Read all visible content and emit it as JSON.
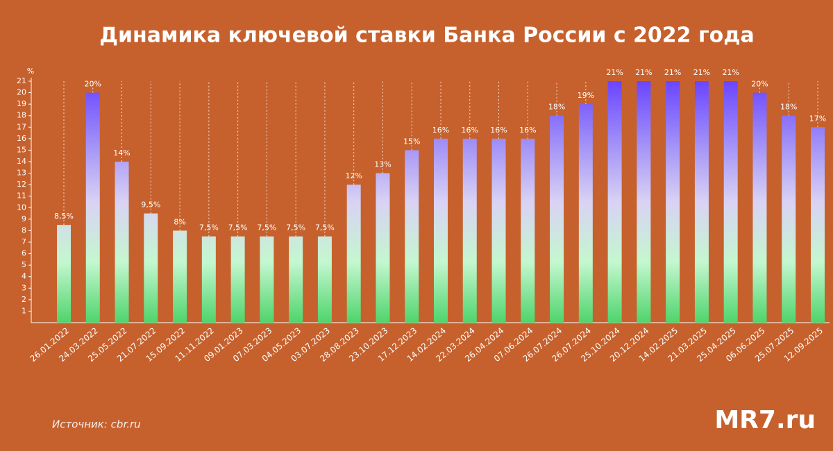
{
  "chart_data": {
    "type": "bar",
    "title": "Динамика ключевой ставки Банка России с 2022 года",
    "y_label": "%",
    "categories": [
      "26.01.2022",
      "24.03.2022",
      "25.05.2022",
      "21.07.2022",
      "15.09.2022",
      "11.11.2022",
      "09.01.2023",
      "07.03.2023",
      "04.05.2023",
      "03.07.2023",
      "28.08.2023",
      "23.10.2023",
      "17.12.2023",
      "14.02.2024",
      "22.03.2024",
      "26.04.2024",
      "07.06.2024",
      "26.07.2024",
      "26.07.2024",
      "25.10.2024",
      "20.12.2024",
      "14.02.2025",
      "21.03.2025",
      "25.04.2025",
      "06.06.2025",
      "25.07.2025",
      "12.09.2025"
    ],
    "values": [
      8.5,
      20,
      14,
      9.5,
      8,
      7.5,
      7.5,
      7.5,
      7.5,
      7.5,
      12,
      13,
      15,
      16,
      16,
      16,
      16,
      18,
      19,
      21,
      21,
      21,
      21,
      21,
      20,
      18,
      17
    ],
    "value_labels": [
      "8,5%",
      "20%",
      "14%",
      "9,5%",
      "8%",
      "7,5%",
      "7,5%",
      "7,5%",
      "7,5%",
      "7,5%",
      "12%",
      "13%",
      "15%",
      "16%",
      "16%",
      "16%",
      "16%",
      "18%",
      "19%",
      "21%",
      "21%",
      "21%",
      "21%",
      "21%",
      "20%",
      "18%",
      "17%"
    ],
    "ylim": [
      0,
      21
    ],
    "yticks": [
      1,
      2,
      3,
      4,
      5,
      6,
      7,
      8,
      9,
      10,
      11,
      12,
      13,
      14,
      15,
      16,
      17,
      18,
      19,
      20,
      21
    ],
    "colors": [
      "#4fd46c",
      "#c4f7cf",
      "#d9d2f4",
      "#9f8ef7",
      "#6a45ff"
    ],
    "source": "Источник: cbr.ru",
    "brand": "MR7.ru"
  }
}
